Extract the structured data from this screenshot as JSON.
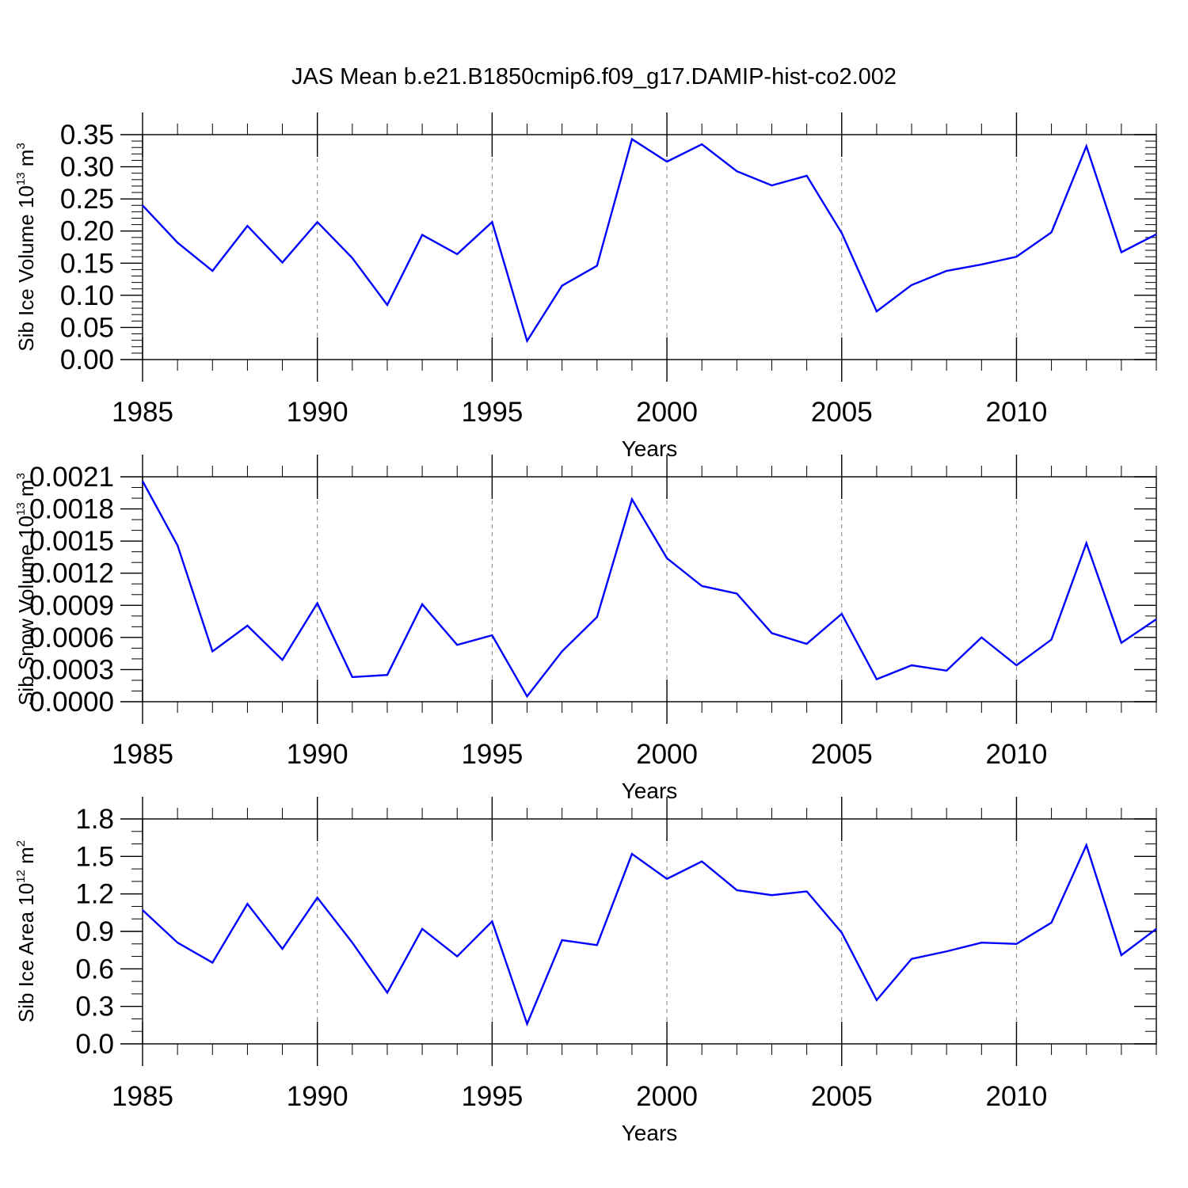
{
  "figure": {
    "title": "JAS Mean b.e21.B1850cmip6.f09_g17.DAMIP-hist-co2.002"
  },
  "colors": {
    "line": "#0000ff",
    "axis": "#000000",
    "gridline": "#7f7f7f",
    "background": "#ffffff"
  },
  "chart_data": [
    {
      "type": "line",
      "name": "sib-ice-volume",
      "ylabel_main": "Sib Ice Volume 10",
      "ylabel_exp": "13",
      "ylabel_unit": " m",
      "ylabel_unit_exp": "3",
      "xlabel": "Years",
      "xlim": [
        1985,
        2014
      ],
      "ylim": [
        0.0,
        0.35
      ],
      "yticks": [
        0.0,
        0.05,
        0.1,
        0.15,
        0.2,
        0.25,
        0.3,
        0.35
      ],
      "ytick_labels": [
        "0.00",
        "0.05",
        "0.10",
        "0.15",
        "0.20",
        "0.25",
        "0.30",
        "0.35"
      ],
      "yminor_per_major": 4,
      "xticks": [
        1985,
        1990,
        1995,
        2000,
        2005,
        2010
      ],
      "xtick_labels": [
        "1985",
        "1990",
        "1995",
        "2000",
        "2005",
        "2010"
      ],
      "vgrid": [
        1990,
        1995,
        2000,
        2005,
        2010
      ],
      "x": [
        1985,
        1986,
        1987,
        1988,
        1989,
        1990,
        1991,
        1992,
        1993,
        1994,
        1995,
        1996,
        1997,
        1998,
        1999,
        2000,
        2001,
        2002,
        2003,
        2004,
        2005,
        2006,
        2007,
        2008,
        2009,
        2010,
        2011,
        2012,
        2013,
        2014
      ],
      "series": [
        {
          "name": "JAS mean",
          "values": [
            0.24,
            0.182,
            0.138,
            0.208,
            0.151,
            0.214,
            0.158,
            0.085,
            0.194,
            0.164,
            0.214,
            0.029,
            0.115,
            0.146,
            0.343,
            0.308,
            0.335,
            0.293,
            0.271,
            0.286,
            0.197,
            0.075,
            0.116,
            0.138,
            0.148,
            0.16,
            0.198,
            0.332,
            0.167,
            0.195
          ]
        }
      ]
    },
    {
      "type": "line",
      "name": "sib-snow-volume",
      "ylabel_main": "Sib Snow Volume 10",
      "ylabel_exp": "13",
      "ylabel_unit": " m",
      "ylabel_unit_exp": "3",
      "xlabel": "Years",
      "xlim": [
        1985,
        2014
      ],
      "ylim": [
        0.0,
        0.0021
      ],
      "yticks": [
        0.0,
        0.0003,
        0.0006,
        0.0009,
        0.0012,
        0.0015,
        0.0018,
        0.0021
      ],
      "ytick_labels": [
        "0.0000",
        "0.0003",
        "0.0006",
        "0.0009",
        "0.0012",
        "0.0015",
        "0.0018",
        "0.0021"
      ],
      "yminor_per_major": 2,
      "xticks": [
        1985,
        1990,
        1995,
        2000,
        2005,
        2010
      ],
      "xtick_labels": [
        "1985",
        "1990",
        "1995",
        "2000",
        "2005",
        "2010"
      ],
      "vgrid": [
        1990,
        1995,
        2000,
        2005,
        2010
      ],
      "x": [
        1985,
        1986,
        1987,
        1988,
        1989,
        1990,
        1991,
        1992,
        1993,
        1994,
        1995,
        1996,
        1997,
        1998,
        1999,
        2000,
        2001,
        2002,
        2003,
        2004,
        2005,
        2006,
        2007,
        2008,
        2009,
        2010,
        2011,
        2012,
        2013,
        2014
      ],
      "series": [
        {
          "name": "JAS mean",
          "values": [
            0.00206,
            0.00146,
            0.00047,
            0.00071,
            0.00039,
            0.00092,
            0.00023,
            0.00025,
            0.00091,
            0.00053,
            0.00062,
            5e-05,
            0.00047,
            0.00079,
            0.00189,
            0.00134,
            0.00108,
            0.00101,
            0.00064,
            0.00054,
            0.00082,
            0.00021,
            0.00034,
            0.00029,
            0.0006,
            0.00034,
            0.00058,
            0.00148,
            0.00055,
            0.00077
          ]
        }
      ]
    },
    {
      "type": "line",
      "name": "sib-ice-area",
      "ylabel_main": "Sib Ice Area 10",
      "ylabel_exp": "12",
      "ylabel_unit": " m",
      "ylabel_unit_exp": "2",
      "xlabel": "Years",
      "xlim": [
        1985,
        2014
      ],
      "ylim": [
        0.0,
        1.8
      ],
      "yticks": [
        0.0,
        0.3,
        0.6,
        0.9,
        1.2,
        1.5,
        1.8
      ],
      "ytick_labels": [
        "0.0",
        "0.3",
        "0.6",
        "0.9",
        "1.2",
        "1.5",
        "1.8"
      ],
      "yminor_per_major": 2,
      "xticks": [
        1985,
        1990,
        1995,
        2000,
        2005,
        2010
      ],
      "xtick_labels": [
        "1985",
        "1990",
        "1995",
        "2000",
        "2005",
        "2010"
      ],
      "vgrid": [
        1990,
        1995,
        2000,
        2005,
        2010
      ],
      "x": [
        1985,
        1986,
        1987,
        1988,
        1989,
        1990,
        1991,
        1992,
        1993,
        1994,
        1995,
        1996,
        1997,
        1998,
        1999,
        2000,
        2001,
        2002,
        2003,
        2004,
        2005,
        2006,
        2007,
        2008,
        2009,
        2010,
        2011,
        2012,
        2013,
        2014
      ],
      "series": [
        {
          "name": "JAS mean",
          "values": [
            1.07,
            0.81,
            0.65,
            1.12,
            0.76,
            1.17,
            0.81,
            0.41,
            0.92,
            0.7,
            0.98,
            0.16,
            0.83,
            0.79,
            1.52,
            1.32,
            1.46,
            1.23,
            1.19,
            1.22,
            0.89,
            0.35,
            0.68,
            0.74,
            0.81,
            0.8,
            0.97,
            1.59,
            0.71,
            0.92
          ]
        }
      ]
    }
  ]
}
